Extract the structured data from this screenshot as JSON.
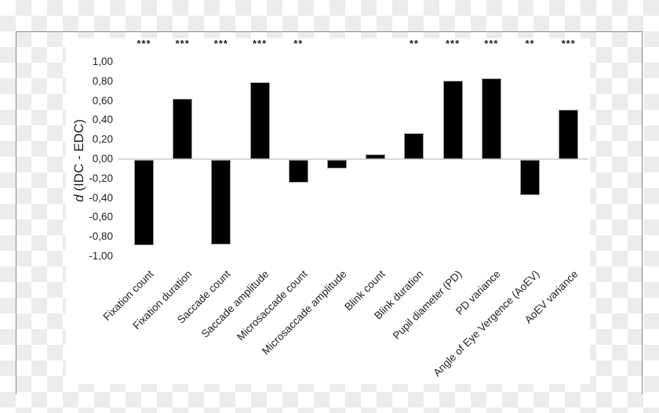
{
  "chart_data": {
    "type": "bar",
    "title": "",
    "xlabel": "",
    "ylabel_italic": "d",
    "ylabel_rest": " (IDC - EDC)",
    "ylim": [
      -1.0,
      1.0
    ],
    "yticks": [
      "1,00",
      "0,80",
      "0,60",
      "0,40",
      "0,20",
      "0,00",
      "-0,20",
      "-0,40",
      "-0,60",
      "-0,80",
      "-1,00"
    ],
    "categories": [
      "Fixation count",
      "Fixation duration",
      "Saccade count",
      "Saccade amplitude",
      "Microsaccade count",
      "Microsaccade amplitude",
      "Blink count",
      "Blink duration",
      "Pupil diameter (PD)",
      "PD variance",
      "Angle of Eye Vergence (AoEV)",
      "AoEV variance"
    ],
    "values": [
      -0.88,
      0.62,
      -0.87,
      0.79,
      -0.23,
      -0.09,
      0.05,
      0.27,
      0.81,
      0.83,
      -0.36,
      0.51
    ],
    "significance": [
      "***",
      "***",
      "***",
      "***",
      "**",
      "",
      "",
      "**",
      "***",
      "***",
      "**",
      "***"
    ],
    "grid": false,
    "legend": null,
    "bar_color": "#000000"
  }
}
